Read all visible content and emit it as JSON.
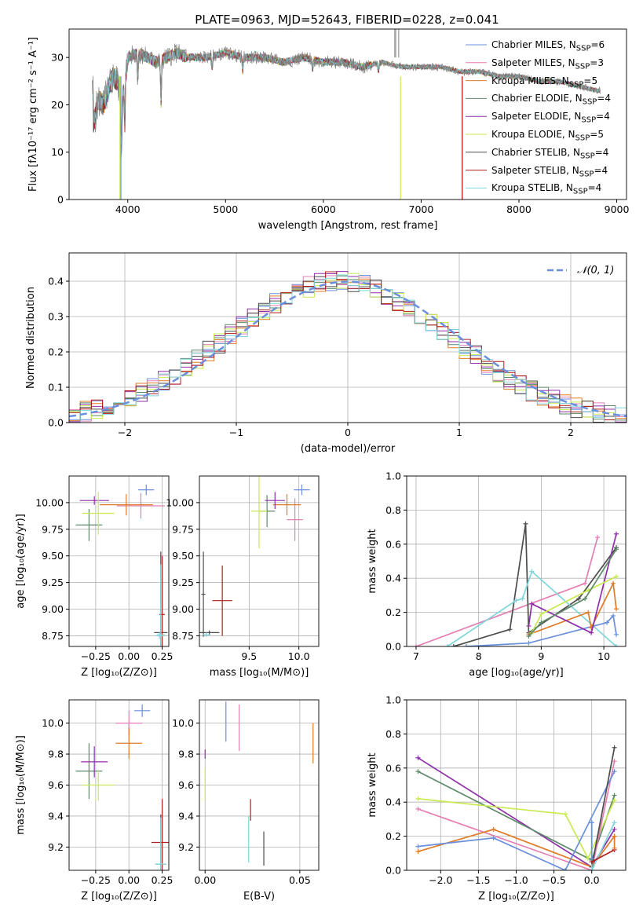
{
  "figure_title": "PLATE=0963, MJD=52643, FIBERID=0228, z=0.041",
  "series": [
    {
      "key": "chabrier_miles",
      "label_html": "Chabrier MILES, N<sub>SSP</sub>=6",
      "label": "Chabrier MILES, NSSP=6",
      "color": "#6a8fdc"
    },
    {
      "key": "salpeter_miles",
      "label_html": "Salpeter MILES, N<sub>SSP</sub>=3",
      "label": "Salpeter MILES, NSSP=3",
      "color": "#e57fb3"
    },
    {
      "key": "kroupa_miles",
      "label_html": "Kroupa MILES, N<sub>SSP</sub>=5",
      "label": "Kroupa MILES, NSSP=5",
      "color": "#e07b27"
    },
    {
      "key": "chabrier_elodie",
      "label_html": "Chabrier ELODIE, N<sub>SSP</sub>=4",
      "label": "Chabrier ELODIE, NSSP=4",
      "color": "#5e8a6a"
    },
    {
      "key": "salpeter_elodie",
      "label_html": "Salpeter ELODIE, N<sub>SSP</sub>=4",
      "label": "Salpeter ELODIE, NSSP=4",
      "color": "#8e2fa8"
    },
    {
      "key": "kroupa_elodie",
      "label_html": "Kroupa ELODIE, N<sub>SSP</sub>=5",
      "label": "Kroupa ELODIE, NSSP=5",
      "color": "#c8ea4e"
    },
    {
      "key": "chabrier_stelib",
      "label_html": "Chabrier STELIB, N<sub>SSP</sub>=4",
      "label": "Chabrier STELIB, NSSP=4",
      "color": "#4d4d4d"
    },
    {
      "key": "salpeter_stelib",
      "label_html": "Salpeter STELIB, N<sub>SSP</sub>=4",
      "label": "Salpeter STELIB, NSSP=4",
      "color": "#b01c1c"
    },
    {
      "key": "kroupa_stelib",
      "label_html": "Kroupa STELIB, N<sub>SSP</sub>=4",
      "label": "Kroupa STELIB, NSSP=4",
      "color": "#7fd6dc"
    }
  ],
  "chart_data": [
    {
      "id": "spectrum",
      "type": "line",
      "title": "PLATE=0963, MJD=52643, FIBERID=0228, z=0.041",
      "xlabel": "wavelength [Angstrom, rest frame]",
      "ylabel": "Flux [fλ10⁻¹⁷ erg cm⁻² s⁻¹ A⁻¹]",
      "xlim": [
        3400,
        9100
      ],
      "ylim": [
        0,
        36
      ],
      "xticks": [
        4000,
        5000,
        6000,
        7000,
        8000,
        9000
      ],
      "yticks": [
        0,
        10,
        20,
        30
      ],
      "grid": false,
      "legend_position": "top-right",
      "observed_flux": {
        "color": "#808080",
        "x": [
          3650,
          3700,
          3750,
          3800,
          3850,
          3900,
          3930,
          3970,
          4000,
          4100,
          4200,
          4300,
          4400,
          4500,
          4600,
          4800,
          5000,
          5200,
          5400,
          5600,
          5800,
          6000,
          6200,
          6400,
          6600,
          6800,
          7000,
          7200,
          7400,
          7600,
          7800,
          8000,
          8200,
          8400,
          8600,
          8800
        ],
        "y": [
          16,
          21,
          20,
          23,
          26,
          25,
          20,
          24,
          30,
          31,
          30,
          29,
          30,
          31,
          30,
          30,
          31,
          30,
          30,
          29,
          30,
          29,
          29,
          28,
          29,
          28,
          28,
          28,
          27,
          27,
          26,
          26,
          25,
          25,
          24,
          23
        ]
      },
      "model_dropouts": [
        {
          "series": "kroupa_elodie",
          "x": 3920
        },
        {
          "series": "chabrier_miles",
          "x": 3930
        },
        {
          "series": "kroupa_elodie",
          "x": 6790
        },
        {
          "series": "kroupa_miles",
          "x": 7420
        },
        {
          "series": "salpeter_stelib",
          "x": 7420
        }
      ]
    },
    {
      "id": "residual_histogram",
      "type": "line",
      "xlabel": "(data-model)/error",
      "ylabel": "Normed distribution",
      "xlim": [
        -2.5,
        2.5
      ],
      "ylim": [
        0,
        0.48
      ],
      "xticks": [
        -2,
        -1,
        0,
        1,
        2
      ],
      "yticks": [
        0.0,
        0.1,
        0.2,
        0.3,
        0.4
      ],
      "grid": true,
      "legend_position": "top-right",
      "reference_curve": {
        "label": "𝒩(0, 1)",
        "mean": 0,
        "sigma": 1,
        "color": "#6a8fdc",
        "style": "dashed"
      }
    },
    {
      "id": "age_vs_metallicity",
      "type": "scatter",
      "xlabel": "Z [log₁₀(Z/Z⊙)]",
      "ylabel": "age  [log₁₀(age/yr)]",
      "xlim": [
        -0.45,
        0.3
      ],
      "ylim": [
        8.65,
        10.25
      ],
      "xticks": [
        -0.25,
        0.0,
        0.25
      ],
      "yticks": [
        8.75,
        9.0,
        9.25,
        9.5,
        9.75,
        10.0
      ],
      "grid": true,
      "points": [
        {
          "series": "chabrier_miles",
          "x": 0.13,
          "y": 10.12,
          "xerr": 0.06,
          "yerr": 0.05
        },
        {
          "series": "salpeter_miles",
          "x": 0.09,
          "y": 9.97,
          "xerr": 0.18,
          "yerr": 0.12
        },
        {
          "series": "kroupa_miles",
          "x": -0.02,
          "y": 9.98,
          "xerr": 0.2,
          "yerr": 0.1
        },
        {
          "series": "chabrier_elodie",
          "x": -0.3,
          "y": 9.79,
          "xerr": 0.1,
          "yerr": 0.15
        },
        {
          "series": "salpeter_elodie",
          "x": -0.26,
          "y": 10.02,
          "xerr": 0.11,
          "yerr": 0.04
        },
        {
          "series": "kroupa_elodie",
          "x": -0.23,
          "y": 9.9,
          "xerr": 0.12,
          "yerr": 0.2
        },
        {
          "series": "chabrier_stelib",
          "x": 0.24,
          "y": 8.78,
          "xerr": 0.05,
          "yerr": 0.76
        },
        {
          "series": "salpeter_stelib",
          "x": 0.25,
          "y": 8.95,
          "xerr": 0.02,
          "yerr": 0.55
        },
        {
          "series": "kroupa_stelib",
          "x": 0.24,
          "y": 8.76,
          "xerr": 0.03,
          "yerr": 0.66
        },
        {
          "series": "kroupa_stelib",
          "x": 0.23,
          "y": 8.75,
          "xerr": 0.03,
          "yerr": 0.03
        }
      ]
    },
    {
      "id": "age_vs_mass",
      "type": "scatter",
      "xlabel": "mass [log₁₀(M/M⊙)]",
      "ylabel": "",
      "xlim": [
        9.0,
        10.2
      ],
      "ylim": [
        8.65,
        10.25
      ],
      "xticks": [
        9.5,
        10.0
      ],
      "yticks": [
        8.75,
        9.0,
        9.25,
        9.5,
        9.75,
        10.0
      ],
      "grid": true,
      "points": [
        {
          "series": "chabrier_miles",
          "x": 10.03,
          "y": 10.12,
          "xerr": 0.08,
          "yerr": 0.05
        },
        {
          "series": "salpeter_miles",
          "x": 9.96,
          "y": 9.84,
          "xerr": 0.08,
          "yerr": 0.2
        },
        {
          "series": "kroupa_miles",
          "x": 9.88,
          "y": 9.98,
          "xerr": 0.14,
          "yerr": 0.1
        },
        {
          "series": "chabrier_elodie",
          "x": 9.68,
          "y": 9.92,
          "xerr": 0.08,
          "yerr": 0.15
        },
        {
          "series": "salpeter_elodie",
          "x": 9.76,
          "y": 10.02,
          "xerr": 0.1,
          "yerr": 0.08
        },
        {
          "series": "kroupa_elodie",
          "x": 9.6,
          "y": 9.92,
          "xerr": 0.08,
          "yerr": 0.35
        },
        {
          "series": "chabrier_stelib",
          "x": 9.1,
          "y": 8.78,
          "xerr": 0.1,
          "yerr": 0.02
        },
        {
          "series": "chabrier_stelib",
          "x": 9.04,
          "y": 9.14,
          "xerr": 0.02,
          "yerr": 0.4
        },
        {
          "series": "salpeter_stelib",
          "x": 9.23,
          "y": 9.08,
          "xerr": 0.1,
          "yerr": 0.33
        },
        {
          "series": "kroupa_stelib",
          "x": 9.07,
          "y": 8.76,
          "xerr": 0.04,
          "yerr": 0.02
        }
      ]
    },
    {
      "id": "mass_weight_vs_age",
      "type": "line",
      "xlabel": "age  [log₁₀(age/yr)]",
      "ylabel": "mass weight",
      "xlim": [
        6.85,
        10.35
      ],
      "ylim": [
        0,
        1.0
      ],
      "xticks": [
        7,
        8,
        9,
        10
      ],
      "yticks": [
        0.0,
        0.2,
        0.4,
        0.6,
        0.8,
        1.0
      ],
      "grid": true,
      "lines": [
        {
          "series": "salpeter_miles",
          "x": [
            7.0,
            9.7,
            9.9
          ],
          "y": [
            0.0,
            0.37,
            0.64
          ]
        },
        {
          "series": "chabrier_stelib",
          "x": [
            7.6,
            8.5,
            8.75,
            8.8,
            9.6,
            10.2
          ],
          "y": [
            0.0,
            0.1,
            0.72,
            0.08,
            0.28,
            0.58
          ]
        },
        {
          "series": "kroupa_stelib",
          "x": [
            7.5,
            8.6,
            8.7,
            8.85,
            10.2
          ],
          "y": [
            0.0,
            0.27,
            0.28,
            0.44,
            0.0
          ]
        },
        {
          "series": "chabrier_miles",
          "x": [
            7.8,
            8.8,
            10.05,
            10.15,
            10.2
          ],
          "y": [
            0.0,
            0.02,
            0.14,
            0.18,
            0.07
          ]
        },
        {
          "series": "kroupa_miles",
          "x": [
            8.8,
            9.75,
            9.8,
            10.15,
            10.2
          ],
          "y": [
            0.07,
            0.2,
            0.11,
            0.37,
            0.22
          ]
        },
        {
          "series": "salpeter_elodie",
          "x": [
            8.8,
            8.85,
            9.8,
            10.2
          ],
          "y": [
            0.12,
            0.25,
            0.08,
            0.66
          ]
        },
        {
          "series": "kroupa_elodie",
          "x": [
            8.85,
            9.0,
            9.75,
            10.2
          ],
          "y": [
            0.08,
            0.19,
            0.33,
            0.41
          ]
        },
        {
          "series": "chabrier_elodie",
          "x": [
            8.8,
            9.0,
            9.7,
            10.2
          ],
          "y": [
            0.06,
            0.14,
            0.28,
            0.57
          ]
        }
      ]
    },
    {
      "id": "mass_vs_metallicity",
      "type": "scatter",
      "xlabel": "Z [log₁₀(Z/Z⊙)]",
      "ylabel": "mass [log₁₀(M/M⊙)]",
      "xlim": [
        -0.45,
        0.3
      ],
      "ylim": [
        9.05,
        10.15
      ],
      "xticks": [
        -0.25,
        0.0,
        0.25
      ],
      "yticks": [
        9.2,
        9.4,
        9.6,
        9.8,
        10.0
      ],
      "grid": true,
      "points": [
        {
          "series": "chabrier_miles",
          "x": 0.1,
          "y": 10.08,
          "xerr": 0.06,
          "yerr": 0.04
        },
        {
          "series": "salpeter_miles",
          "x": 0.0,
          "y": 10.0,
          "xerr": 0.1,
          "yerr": 0.08
        },
        {
          "series": "kroupa_miles",
          "x": 0.0,
          "y": 9.87,
          "xerr": 0.1,
          "yerr": 0.1
        },
        {
          "series": "chabrier_elodie",
          "x": -0.3,
          "y": 9.69,
          "xerr": 0.1,
          "yerr": 0.18
        },
        {
          "series": "salpeter_elodie",
          "x": -0.26,
          "y": 9.75,
          "xerr": 0.1,
          "yerr": 0.1
        },
        {
          "series": "kroupa_elodie",
          "x": -0.23,
          "y": 9.6,
          "xerr": 0.12,
          "yerr": 0.1
        },
        {
          "series": "salpeter_stelib",
          "x": 0.25,
          "y": 9.23,
          "xerr": 0.08,
          "yerr": 0.28
        },
        {
          "series": "chabrier_stelib",
          "x": 0.24,
          "y": 9.09,
          "xerr": 0.04,
          "yerr": 0.32
        },
        {
          "series": "kroupa_stelib",
          "x": 0.24,
          "y": 9.09,
          "xerr": 0.04,
          "yerr": 0.3
        }
      ]
    },
    {
      "id": "mass_vs_ebv",
      "type": "scatter",
      "xlabel": "E(B-V)",
      "ylabel": "",
      "xlim": [
        -0.003,
        0.06
      ],
      "ylim": [
        9.05,
        10.15
      ],
      "xticks": [
        0.0,
        0.05
      ],
      "yticks": [
        9.2,
        9.4,
        9.6,
        9.8,
        10.0
      ],
      "grid": true,
      "points": [
        {
          "series": "chabrier_miles",
          "x": 0.011,
          "y": 10.01,
          "yerr": 0.13
        },
        {
          "series": "salpeter_miles",
          "x": 0.018,
          "y": 9.97,
          "yerr": 0.15
        },
        {
          "series": "kroupa_miles",
          "x": 0.057,
          "y": 9.87,
          "yerr": 0.13
        },
        {
          "series": "salpeter_elodie",
          "x": 0.0,
          "y": 9.8,
          "yerr": 0.03
        },
        {
          "series": "kroupa_elodie",
          "x": 0.0,
          "y": 9.6,
          "yerr": 0.1
        },
        {
          "series": "salpeter_stelib",
          "x": 0.024,
          "y": 9.44,
          "yerr": 0.07
        },
        {
          "series": "kroupa_stelib",
          "x": 0.023,
          "y": 9.25,
          "yerr": 0.15
        },
        {
          "series": "chabrier_stelib",
          "x": 0.031,
          "y": 9.19,
          "yerr": 0.11
        }
      ]
    },
    {
      "id": "mass_weight_vs_metallicity",
      "type": "line",
      "xlabel": "Z [log₁₀(Z/Z⊙)]",
      "ylabel": "mass weight",
      "xlim": [
        -2.45,
        0.45
      ],
      "ylim": [
        0,
        1.0
      ],
      "xticks": [
        -2.0,
        -1.5,
        -1.0,
        -0.5,
        0.0
      ],
      "yticks": [
        0.0,
        0.2,
        0.4,
        0.6,
        0.8,
        1.0
      ],
      "grid": true,
      "lines": [
        {
          "series": "salpeter_elodie",
          "x": [
            -2.3,
            0.0,
            0.3
          ],
          "y": [
            0.66,
            0.02,
            0.24
          ]
        },
        {
          "series": "chabrier_elodie",
          "x": [
            -2.3,
            0.0,
            0.3
          ],
          "y": [
            0.58,
            0.06,
            0.44
          ]
        },
        {
          "series": "kroupa_elodie",
          "x": [
            -2.3,
            -0.35,
            -0.05,
            0.3
          ],
          "y": [
            0.42,
            0.33,
            0.07,
            0.41
          ]
        },
        {
          "series": "salpeter_miles",
          "x": [
            -2.3,
            0.0,
            0.3
          ],
          "y": [
            0.36,
            0.0,
            0.64
          ]
        },
        {
          "series": "kroupa_miles",
          "x": [
            -2.3,
            -1.3,
            0.0,
            0.3
          ],
          "y": [
            0.11,
            0.24,
            0.02,
            0.2
          ]
        },
        {
          "series": "chabrier_miles",
          "x": [
            -2.3,
            -1.3,
            -0.35,
            0.3
          ],
          "y": [
            0.14,
            0.19,
            0.0,
            0.58
          ]
        },
        {
          "series": "chabrier_stelib",
          "x": [
            0.0,
            0.3
          ],
          "y": [
            0.02,
            0.72
          ]
        },
        {
          "series": "kroupa_stelib",
          "x": [
            0.0,
            0.0,
            0.3
          ],
          "y": [
            0.28,
            0.0,
            0.28
          ]
        },
        {
          "series": "salpeter_stelib",
          "x": [
            0.0,
            0.3
          ],
          "y": [
            0.05,
            0.12
          ]
        },
        {
          "series": "chabrier_miles",
          "x": [
            0.0,
            0.0
          ],
          "y": [
            0.07,
            0.28
          ]
        },
        {
          "series": "kroupa_miles",
          "x": [
            0.3,
            0.3
          ],
          "y": [
            0.13,
            0.2
          ]
        }
      ]
    }
  ]
}
